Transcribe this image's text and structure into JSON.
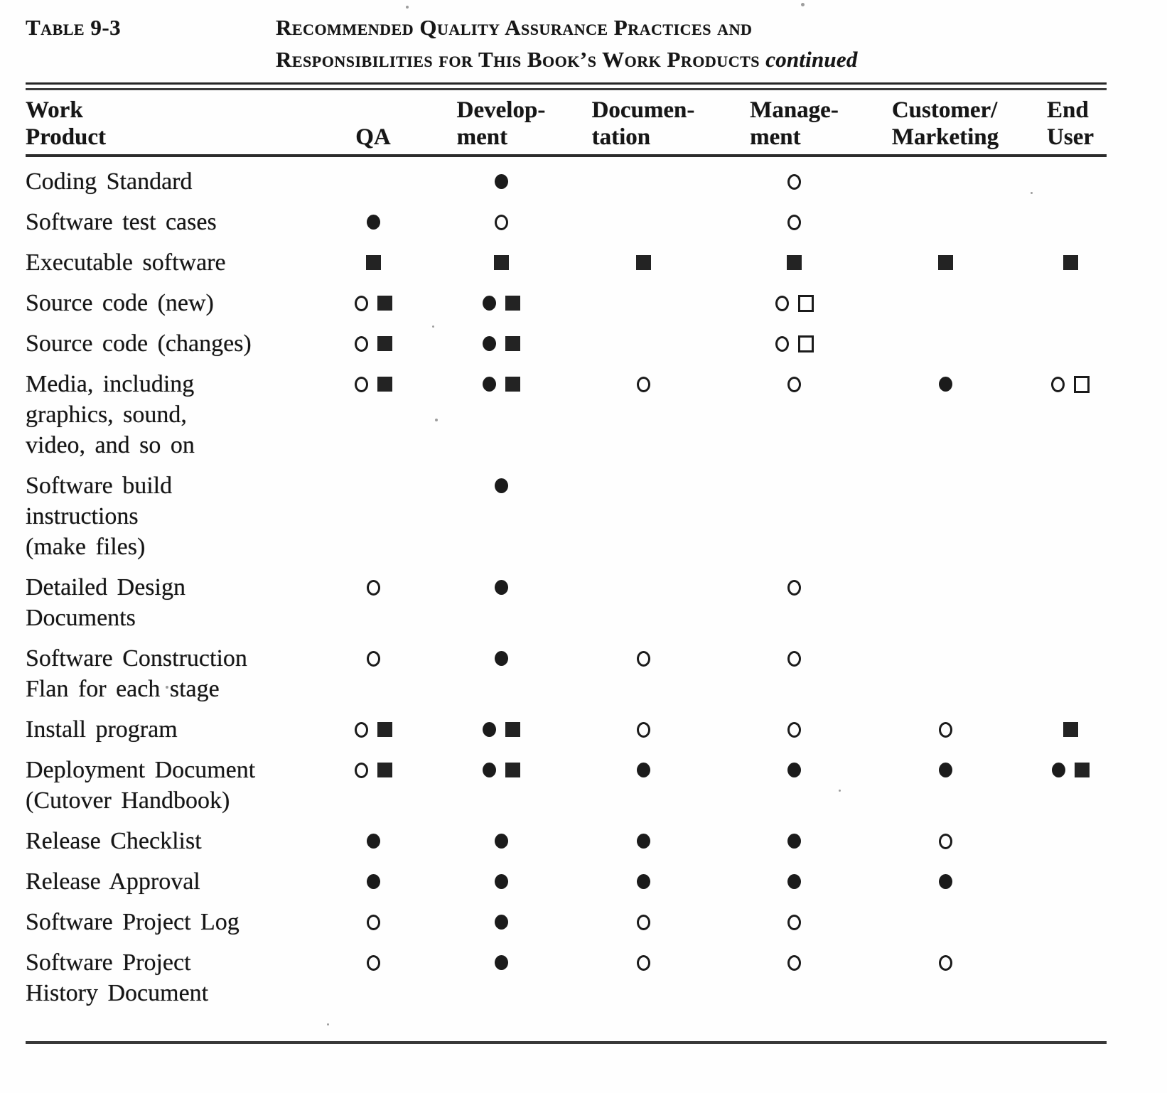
{
  "page": {
    "label": "Table 9-3",
    "title_line1": "Recommended Quality Assurance Practices and",
    "title_line2": "Responsibilities for This Book’s Work Products",
    "title_suffix": "continued"
  },
  "table": {
    "columns": [
      {
        "id": "work-product",
        "lines": [
          "Work",
          "Product"
        ]
      },
      {
        "id": "qa",
        "lines": [
          "QA"
        ]
      },
      {
        "id": "development",
        "lines": [
          "Develop-",
          "ment"
        ]
      },
      {
        "id": "documentation",
        "lines": [
          "Documen-",
          "tation"
        ]
      },
      {
        "id": "management",
        "lines": [
          "Manage-",
          "ment"
        ]
      },
      {
        "id": "customer-marketing",
        "lines": [
          "Customer/",
          "Marketing"
        ]
      },
      {
        "id": "end-user",
        "lines": [
          "End",
          "User"
        ]
      }
    ],
    "legend": {
      "filled-circle": "●",
      "open-circle": "○",
      "filled-square": "■",
      "open-square": "□"
    },
    "rows": [
      {
        "product_lines": [
          "Coding Standard"
        ],
        "cells": [
          [],
          [
            "filled-circle"
          ],
          [],
          [
            "open-circle"
          ],
          [],
          []
        ]
      },
      {
        "product_lines": [
          "Software test cases"
        ],
        "cells": [
          [
            "filled-circle"
          ],
          [
            "open-circle"
          ],
          [],
          [
            "open-circle"
          ],
          [],
          []
        ]
      },
      {
        "product_lines": [
          "Executable software"
        ],
        "cells": [
          [
            "filled-square"
          ],
          [
            "filled-square"
          ],
          [
            "filled-square"
          ],
          [
            "filled-square"
          ],
          [
            "filled-square"
          ],
          [
            "filled-square"
          ]
        ]
      },
      {
        "product_lines": [
          "Source code (new)"
        ],
        "cells": [
          [
            "open-circle",
            "filled-square"
          ],
          [
            "filled-circle",
            "filled-square"
          ],
          [],
          [
            "open-circle",
            "open-square"
          ],
          [],
          []
        ]
      },
      {
        "product_lines": [
          "Source code (changes)"
        ],
        "cells": [
          [
            "open-circle",
            "filled-square"
          ],
          [
            "filled-circle",
            "filled-square"
          ],
          [],
          [
            "open-circle",
            "open-square"
          ],
          [],
          []
        ]
      },
      {
        "product_lines": [
          "Media, including",
          "graphics, sound,",
          "video, and so on"
        ],
        "cells": [
          [
            "open-circle",
            "filled-square"
          ],
          [
            "filled-circle",
            "filled-square"
          ],
          [
            "open-circle"
          ],
          [
            "open-circle"
          ],
          [
            "filled-circle"
          ],
          [
            "open-circle",
            "open-square"
          ]
        ]
      },
      {
        "product_lines": [
          "Software build",
          "instructions",
          "(make files)"
        ],
        "cells": [
          [],
          [
            "filled-circle"
          ],
          [],
          [],
          [],
          []
        ]
      },
      {
        "product_lines": [
          "Detailed Design",
          "Documents"
        ],
        "cells": [
          [
            "open-circle"
          ],
          [
            "filled-circle"
          ],
          [],
          [
            "open-circle"
          ],
          [],
          []
        ]
      },
      {
        "product_lines": [
          "Software Construction",
          "Flan for each stage"
        ],
        "cells": [
          [
            "open-circle"
          ],
          [
            "filled-circle"
          ],
          [
            "open-circle"
          ],
          [
            "open-circle"
          ],
          [],
          []
        ]
      },
      {
        "product_lines": [
          "Install program"
        ],
        "cells": [
          [
            "open-circle",
            "filled-square"
          ],
          [
            "filled-circle",
            "filled-square"
          ],
          [
            "open-circle"
          ],
          [
            "open-circle"
          ],
          [
            "open-circle"
          ],
          [
            "filled-square"
          ]
        ]
      },
      {
        "product_lines": [
          "Deployment Document",
          "(Cutover Handbook)"
        ],
        "cells": [
          [
            "open-circle",
            "filled-square"
          ],
          [
            "filled-circle",
            "filled-square"
          ],
          [
            "filled-circle"
          ],
          [
            "filled-circle"
          ],
          [
            "filled-circle"
          ],
          [
            "filled-circle",
            "filled-square"
          ]
        ]
      },
      {
        "product_lines": [
          "Release Checklist"
        ],
        "cells": [
          [
            "filled-circle"
          ],
          [
            "filled-circle"
          ],
          [
            "filled-circle"
          ],
          [
            "filled-circle"
          ],
          [
            "open-circle"
          ],
          []
        ]
      },
      {
        "product_lines": [
          "Release Approval"
        ],
        "cells": [
          [
            "filled-circle"
          ],
          [
            "filled-circle"
          ],
          [
            "filled-circle"
          ],
          [
            "filled-circle"
          ],
          [
            "filled-circle"
          ],
          []
        ]
      },
      {
        "product_lines": [
          "Software Project Log"
        ],
        "cells": [
          [
            "open-circle"
          ],
          [
            "filled-circle"
          ],
          [
            "open-circle"
          ],
          [
            "open-circle"
          ],
          [],
          []
        ]
      },
      {
        "product_lines": [
          "Software Project",
          "History Document"
        ],
        "cells": [
          [
            "open-circle"
          ],
          [
            "filled-circle"
          ],
          [
            "open-circle"
          ],
          [
            "open-circle"
          ],
          [
            "open-circle"
          ],
          []
        ]
      }
    ]
  }
}
